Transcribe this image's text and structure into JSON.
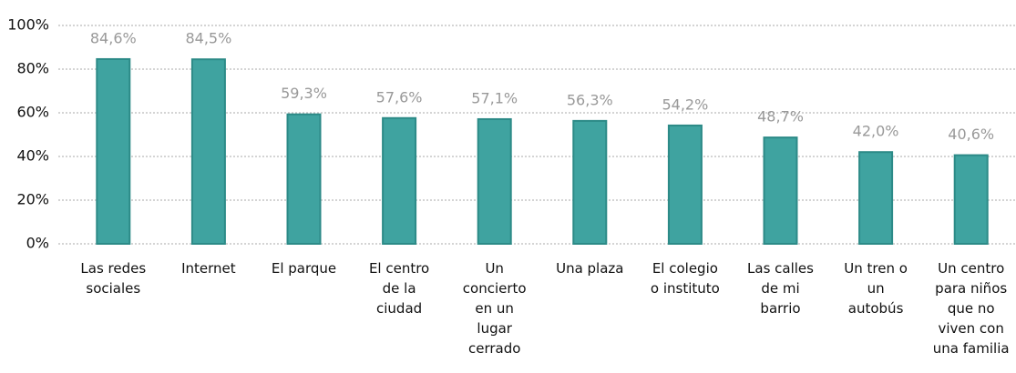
{
  "chart_data": {
    "type": "bar",
    "categories": [
      "Las redes\nsociales",
      "Internet",
      "El parque",
      "El centro\nde la\nciudad",
      "Un\nconcierto\nen un\nlugar\ncerrado",
      "Una plaza",
      "El colegio\no instituto",
      "Las calles\nde mi\nbarrio",
      "Un tren o\nun\nautobús",
      "Un centro\npara niños\nque no\nviven con\nuna familia"
    ],
    "values": [
      84.6,
      84.5,
      59.3,
      57.6,
      57.1,
      56.3,
      54.2,
      48.7,
      42.0,
      40.6
    ],
    "value_labels": [
      "84,6%",
      "84,5%",
      "59,3%",
      "57,6%",
      "57,1%",
      "56,3%",
      "54,2%",
      "48,7%",
      "42,0%",
      "40,6%"
    ],
    "color": "#3fa3a0",
    "ylim": [
      0,
      100
    ],
    "yticks": [
      {
        "value": 0,
        "label": "0%"
      },
      {
        "value": 20,
        "label": "20%"
      },
      {
        "value": 40,
        "label": "40%"
      },
      {
        "value": 60,
        "label": "60%"
      },
      {
        "value": 80,
        "label": "80%"
      },
      {
        "value": 100,
        "label": "100%"
      }
    ],
    "grid": true
  }
}
